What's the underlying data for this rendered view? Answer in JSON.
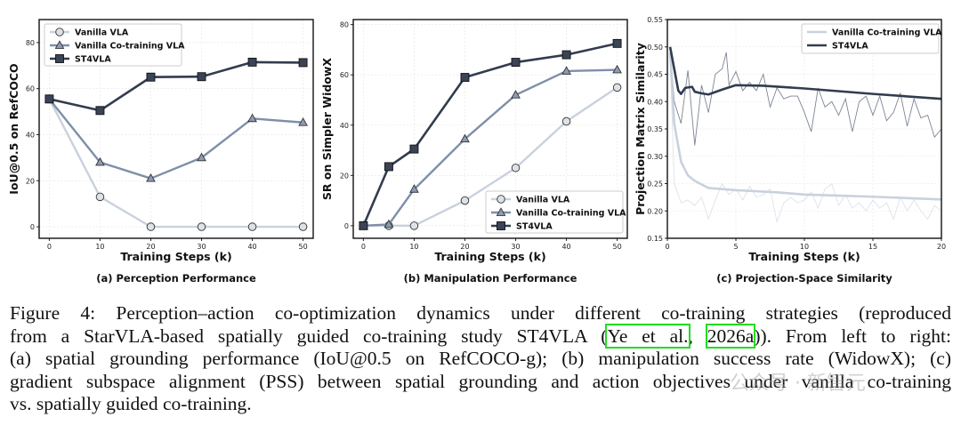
{
  "colors": {
    "vanilla_vla": "#c9d1dd",
    "vanilla_cotraining": "#7e8fa9",
    "st4vla": "#323c4f",
    "st4vla_raw": "#7d8494",
    "cotraining_raw": "#dde2ea"
  },
  "chart_data": [
    {
      "type": "line",
      "subtitle": "(a) Perception Performance",
      "xlabel": "Training Steps (k)",
      "ylabel": "IoU@0.5 on RefCOCO",
      "xlim": [
        -2,
        52
      ],
      "ylim": [
        -5,
        90
      ],
      "xticks": [
        0,
        10,
        20,
        30,
        40,
        50
      ],
      "yticks": [
        0,
        20,
        40,
        60,
        80
      ],
      "grid": true,
      "legend_position": "top-left",
      "x": [
        0,
        10,
        20,
        30,
        40,
        50
      ],
      "series": [
        {
          "name": "Vanilla VLA",
          "marker": "circle",
          "values": [
            55.5,
            13,
            0,
            0,
            0,
            0
          ]
        },
        {
          "name": "Vanilla Co-training VLA",
          "marker": "triangle",
          "values": [
            55.5,
            28,
            21,
            30,
            47,
            45.3
          ]
        },
        {
          "name": "ST4VLA",
          "marker": "square",
          "values": [
            55.5,
            50.5,
            65,
            65.2,
            71.5,
            71.3
          ]
        }
      ]
    },
    {
      "type": "line",
      "subtitle": "(b) Manipulation Performance",
      "xlabel": "Training Steps (k)",
      "ylabel": "SR on Simpler WidowX",
      "xlim": [
        -2,
        52
      ],
      "ylim": [
        -5,
        82
      ],
      "xticks": [
        0,
        10,
        20,
        30,
        40,
        50
      ],
      "yticks": [
        0,
        20,
        40,
        60,
        80
      ],
      "grid": true,
      "legend_position": "bottom-right",
      "x": [
        0,
        5,
        10,
        20,
        30,
        40,
        50
      ],
      "series": [
        {
          "name": "Vanilla VLA",
          "marker": "circle",
          "values": [
            0,
            0,
            0,
            10,
            23,
            41.5,
            55
          ]
        },
        {
          "name": "Vanilla Co-training VLA",
          "marker": "triangle",
          "values": [
            0,
            0.5,
            14.5,
            34.5,
            52,
            61.5,
            62
          ]
        },
        {
          "name": "ST4VLA",
          "marker": "square",
          "values": [
            0,
            23.5,
            30.5,
            59,
            65,
            68,
            72.5
          ]
        }
      ]
    },
    {
      "type": "line",
      "subtitle": "(c) Projection-Space Similarity",
      "xlabel": "Training Steps (k)",
      "ylabel": "Projection Matrix Similarity",
      "xlim": [
        0,
        20
      ],
      "ylim": [
        0.15,
        0.55
      ],
      "xticks": [
        0,
        5,
        10,
        15,
        20
      ],
      "yticks": [
        0.15,
        0.2,
        0.25,
        0.3,
        0.35,
        0.4,
        0.45,
        0.5,
        0.55
      ],
      "grid": true,
      "legend_position": "top-right",
      "series": [
        {
          "name": "Vanilla Co-training VLA",
          "smoothed": {
            "x": [
              0.2,
              0.5,
              1,
              1.5,
              2,
              3,
              5,
              8,
              10,
              15,
              20
            ],
            "values": [
              0.49,
              0.36,
              0.29,
              0.265,
              0.255,
              0.242,
              0.238,
              0.234,
              0.23,
              0.226,
              0.221
            ]
          },
          "raw": {
            "x": [
              0.2,
              0.5,
              1,
              1.5,
              2,
              2.5,
              3,
              3.5,
              4,
              4.5,
              5,
              5.5,
              6,
              6.5,
              7,
              7.5,
              8,
              8.5,
              9,
              9.5,
              10,
              10.5,
              11,
              11.5,
              12,
              12.5,
              13,
              13.5,
              14,
              14.5,
              15,
              15.5,
              16,
              16.5,
              17,
              17.5,
              18,
              18.5,
              19,
              19.5,
              20
            ],
            "values": [
              0.49,
              0.25,
              0.215,
              0.22,
              0.21,
              0.225,
              0.185,
              0.22,
              0.25,
              0.23,
              0.24,
              0.22,
              0.245,
              0.225,
              0.23,
              0.24,
              0.18,
              0.215,
              0.225,
              0.215,
              0.22,
              0.235,
              0.205,
              0.24,
              0.25,
              0.21,
              0.23,
              0.205,
              0.215,
              0.2,
              0.22,
              0.205,
              0.215,
              0.185,
              0.225,
              0.2,
              0.22,
              0.2,
              0.185,
              0.21,
              0.2
            ]
          }
        },
        {
          "name": "ST4VLA",
          "smoothed": {
            "x": [
              0.2,
              0.5,
              0.8,
              1,
              1.3,
              1.8,
              2,
              2.5,
              3,
              4,
              5,
              7,
              10,
              15,
              20
            ],
            "values": [
              0.5,
              0.46,
              0.42,
              0.414,
              0.425,
              0.427,
              0.418,
              0.415,
              0.413,
              0.422,
              0.43,
              0.429,
              0.424,
              0.414,
              0.405
            ]
          },
          "raw": {
            "x": [
              0.2,
              0.5,
              1,
              1.5,
              2,
              2.5,
              3,
              3.5,
              4,
              4.3,
              4.5,
              5,
              5.5,
              6,
              6.5,
              7,
              7.5,
              8,
              8.5,
              9,
              9.5,
              10,
              10.5,
              11,
              11.5,
              12,
              12.5,
              13,
              13.5,
              14,
              14.5,
              15,
              15.5,
              16,
              16.5,
              17,
              17.5,
              18,
              18.5,
              19,
              19.5,
              20
            ],
            "values": [
              0.5,
              0.4,
              0.36,
              0.457,
              0.32,
              0.43,
              0.38,
              0.45,
              0.46,
              0.49,
              0.43,
              0.455,
              0.42,
              0.435,
              0.42,
              0.45,
              0.39,
              0.425,
              0.405,
              0.41,
              0.41,
              0.38,
              0.345,
              0.425,
              0.39,
              0.4,
              0.375,
              0.405,
              0.345,
              0.4,
              0.41,
              0.375,
              0.41,
              0.365,
              0.38,
              0.415,
              0.355,
              0.405,
              0.37,
              0.375,
              0.335,
              0.35
            ]
          }
        }
      ]
    }
  ],
  "caption": {
    "line1": "Figure 4:  Perception–action co-optimization dynamics under different co-training strategies (reproduced",
    "line2_pre": "from a StarVLA-based spatially guided co-training study ST4VLA (",
    "cite1": "Ye et al.",
    "line2_mid": ", ",
    "cite2": "2026a",
    "line2_post": ")).  From left to right:",
    "line3": "(a) spatial grounding performance (IoU@0.5 on RefCOCO-g); (b) manipulation success rate (WidowX); (c)",
    "line4": "gradient subspace alignment (PSS) between spatial grounding and action objectives under vanilla co-training",
    "line5": "vs. spatially guided co-training."
  },
  "watermark": "公众号 · 新智元"
}
